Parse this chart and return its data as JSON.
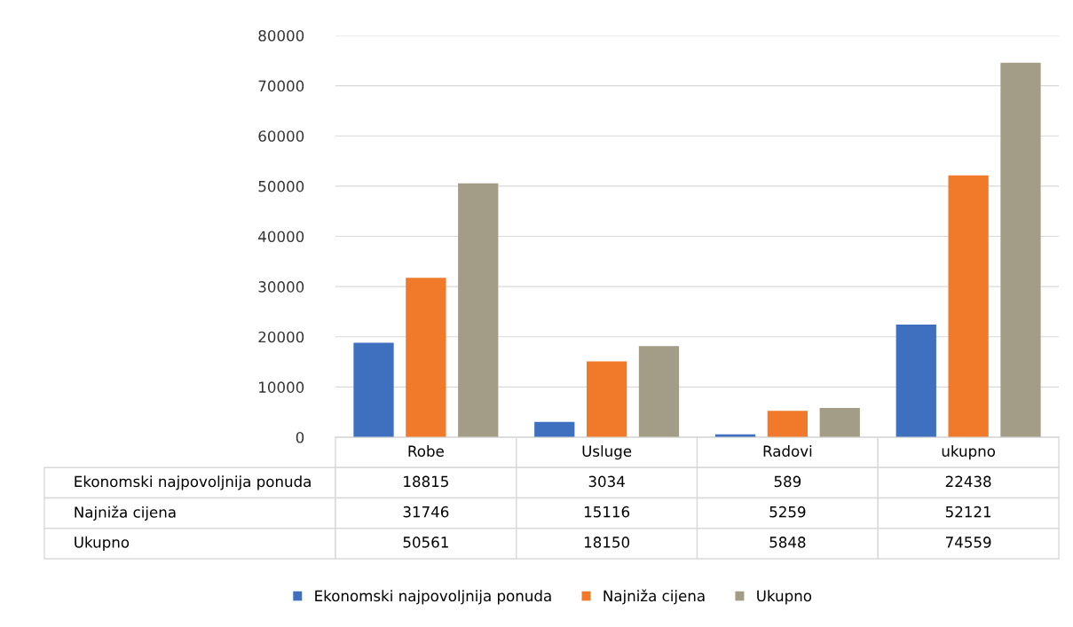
{
  "chart_data": {
    "type": "bar",
    "categories": [
      "Robe",
      "Usluge",
      "Radovi",
      "ukupno"
    ],
    "series": [
      {
        "name": "Ekonomski najpovoljnija ponuda",
        "color": "#3f6fbf",
        "values": [
          18815,
          3034,
          589,
          22438
        ]
      },
      {
        "name": "Najniža cijena",
        "color": "#f07a2a",
        "values": [
          31746,
          15116,
          5259,
          52121
        ]
      },
      {
        "name": "Ukupno",
        "color": "#a39d88",
        "values": [
          50561,
          18150,
          5848,
          74559
        ]
      }
    ],
    "ylim": [
      0,
      80000
    ],
    "yticks": [
      0,
      10000,
      20000,
      30000,
      40000,
      50000,
      60000,
      70000,
      80000
    ],
    "grid": "y",
    "legend": "bottom",
    "data_labels": true
  }
}
